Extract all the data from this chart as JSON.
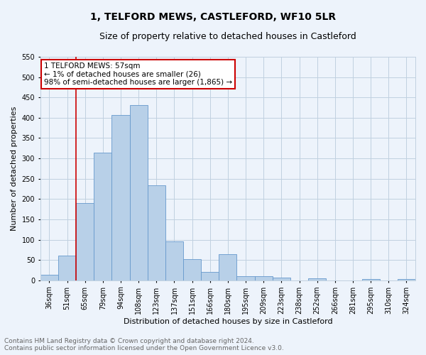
{
  "title": "1, TELFORD MEWS, CASTLEFORD, WF10 5LR",
  "subtitle": "Size of property relative to detached houses in Castleford",
  "xlabel": "Distribution of detached houses by size in Castleford",
  "ylabel": "Number of detached properties",
  "categories": [
    "36sqm",
    "51sqm",
    "65sqm",
    "79sqm",
    "94sqm",
    "108sqm",
    "123sqm",
    "137sqm",
    "151sqm",
    "166sqm",
    "180sqm",
    "195sqm",
    "209sqm",
    "223sqm",
    "238sqm",
    "252sqm",
    "266sqm",
    "281sqm",
    "295sqm",
    "310sqm",
    "324sqm"
  ],
  "values": [
    13,
    60,
    190,
    315,
    407,
    432,
    234,
    95,
    52,
    20,
    65,
    10,
    10,
    6,
    0,
    5,
    0,
    0,
    4,
    0,
    4
  ],
  "bar_color": "#b8d0e8",
  "bar_edge_color": "#6699cc",
  "grid_color": "#c0d0e0",
  "background_color": "#edf3fb",
  "annotation_text": "1 TELFORD MEWS: 57sqm\n← 1% of detached houses are smaller (26)\n98% of semi-detached houses are larger (1,865) →",
  "annotation_box_color": "#ffffff",
  "annotation_box_edge_color": "#cc0000",
  "marker_line_color": "#cc0000",
  "footer_line1": "Contains HM Land Registry data © Crown copyright and database right 2024.",
  "footer_line2": "Contains public sector information licensed under the Open Government Licence v3.0.",
  "ylim": [
    0,
    550
  ],
  "yticks": [
    0,
    50,
    100,
    150,
    200,
    250,
    300,
    350,
    400,
    450,
    500,
    550
  ],
  "title_fontsize": 10,
  "subtitle_fontsize": 9,
  "axis_label_fontsize": 8,
  "tick_fontsize": 7,
  "annotation_fontsize": 7.5,
  "footer_fontsize": 6.5
}
